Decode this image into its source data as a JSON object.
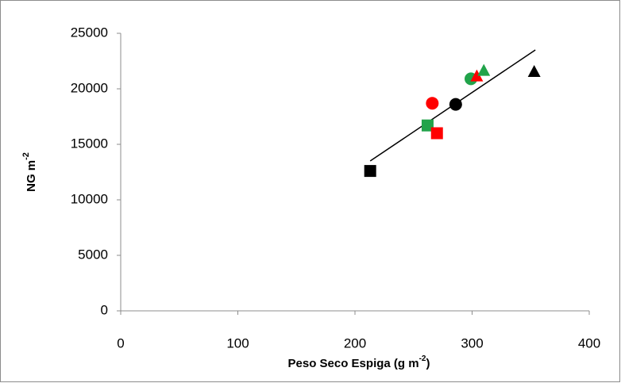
{
  "chart_data": {
    "type": "scatter",
    "xlabel": {
      "text": "Peso Seco Espiga (g m",
      "sup": "-2",
      "end": ")"
    },
    "ylabel": {
      "text": "NG m",
      "sup": "-2"
    },
    "xlim": [
      0,
      400
    ],
    "xticks": [
      0,
      100,
      200,
      300,
      400
    ],
    "ylim": [
      0,
      25000
    ],
    "yticks": [
      0,
      5000,
      10000,
      15000,
      20000,
      25000
    ],
    "grid": false,
    "series": [
      {
        "marker": "square",
        "colors": [
          "#000000",
          "#21a34a",
          "#ff0000"
        ],
        "x": [
          213,
          262,
          270
        ],
        "y": [
          12600,
          16700,
          16000
        ]
      },
      {
        "marker": "circle",
        "colors": [
          "#ff0000",
          "#000000",
          "#21a34a"
        ],
        "x": [
          266,
          286,
          299
        ],
        "y": [
          18700,
          18600,
          20900
        ]
      },
      {
        "marker": "triangle",
        "colors": [
          "#ff0000",
          "#21a34a",
          "#000000"
        ],
        "x": [
          304,
          310,
          353
        ],
        "y": [
          21100,
          21600,
          21500
        ]
      }
    ],
    "trendline": {
      "color": "#000000",
      "x": [
        213,
        354
      ],
      "y": [
        13500,
        23500
      ]
    }
  }
}
